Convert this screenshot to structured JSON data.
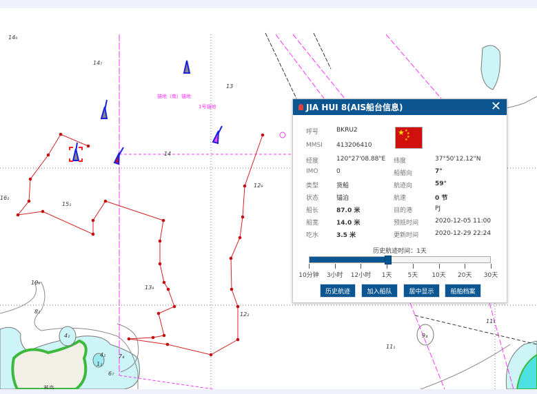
{
  "map": {
    "depths": [
      "14₉",
      "14₇",
      "13",
      "14",
      "12₉",
      "16₂",
      "15₁",
      "10₉",
      "13₉",
      "12₂",
      "8₁",
      "4₁",
      "4₁",
      "1₁",
      "6₇",
      "7₄",
      "11₁",
      "9₄",
      "11₅"
    ],
    "anchorage_label": "锚地（南）锚地",
    "anchorage_label2": "1号锚地",
    "island_label": "苏岛",
    "track_color": "#d42020",
    "restricted_color": "#ff33ff"
  },
  "panel": {
    "title": "JIA HUI 8(AIS船台信息)",
    "close_icon": "close-icon",
    "flag": "china-flag",
    "fields_left": [
      {
        "label": "呼号",
        "value": "BKRU2"
      },
      {
        "label": "MMSI",
        "value": "413206410"
      },
      {
        "label": "经度",
        "value": "120°27'08.88\"E"
      },
      {
        "label": "IMO",
        "value": "0"
      },
      {
        "label": "类型",
        "value": "货船"
      },
      {
        "label": "状态",
        "value": "锚泊"
      },
      {
        "label": "船长",
        "value": "87.0 米"
      },
      {
        "label": "船宽",
        "value": "14.0 米"
      },
      {
        "label": "吃水",
        "value": "3.5 米"
      }
    ],
    "fields_right": [
      {
        "label": "纬度",
        "value": "37°50'12.12\"N"
      },
      {
        "label": "船艏向",
        "value": "7°"
      },
      {
        "label": "航迹向",
        "value": "59°"
      },
      {
        "label": "航速",
        "value": "0 节"
      },
      {
        "label": "目的港",
        "value": "PJ"
      },
      {
        "label": "预抵时间",
        "value": "2020-12-05 11:00"
      },
      {
        "label": "更新时间",
        "value": "2020-12-29 22:24"
      }
    ],
    "slider": {
      "title": "历史航迹时间：1天",
      "selected": "1天",
      "ticks": [
        "10分钟",
        "3小时",
        "12小时",
        "1天",
        "5天",
        "10天",
        "20天",
        "30天"
      ]
    },
    "buttons": [
      "历史航迹",
      "加入船队",
      "居中显示",
      "船舶档案"
    ]
  }
}
